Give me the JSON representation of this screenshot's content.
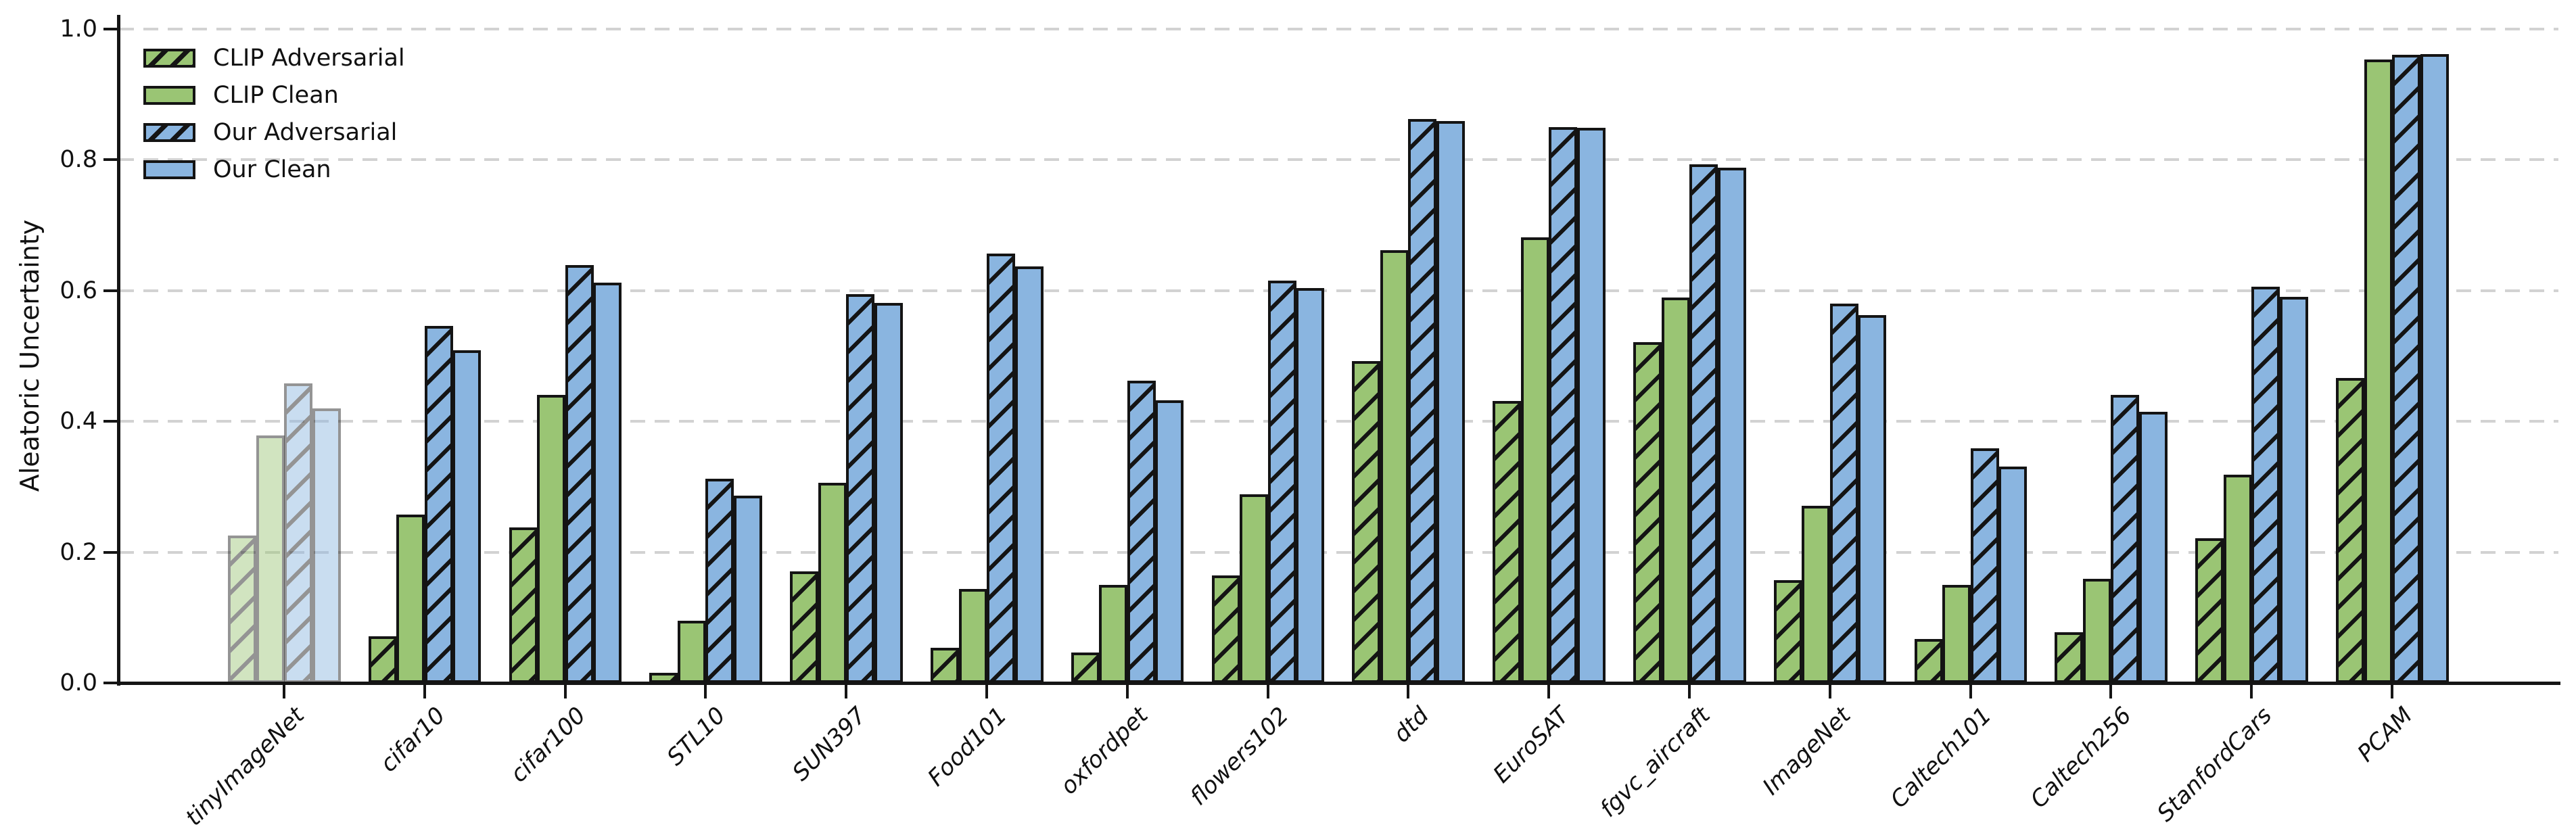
{
  "chart_data": {
    "type": "bar",
    "title": "",
    "xlabel": "",
    "ylabel": "Aleatoric Uncertainty",
    "ylim": [
      0.0,
      1.0
    ],
    "yticks": [
      "0.0",
      "0.2",
      "0.4",
      "0.6",
      "0.8",
      "1.0"
    ],
    "grid": "horizontal-dashed",
    "legend_position": "upper-left",
    "categories": [
      "tinyImageNet",
      "cifar10",
      "cifar100",
      "STL10",
      "SUN397",
      "Food101",
      "oxfordpet",
      "flowers102",
      "dtd",
      "EuroSAT",
      "fgvc_aircraft",
      "ImageNet",
      "Caltech101",
      "Caltech256",
      "StanfordCars",
      "PCAM"
    ],
    "faded_category": "tinyImageNet",
    "faded_alpha": 0.45,
    "series": [
      {
        "name": "CLIP Adversarial",
        "color": "#9ac574",
        "hatch": "/",
        "values": [
          0.225,
          0.071,
          0.238,
          0.016,
          0.171,
          0.054,
          0.047,
          0.164,
          0.492,
          0.431,
          0.521,
          0.157,
          0.067,
          0.078,
          0.221,
          0.466
        ]
      },
      {
        "name": "CLIP Clean",
        "color": "#9ac574",
        "hatch": "",
        "values": [
          0.378,
          0.258,
          0.441,
          0.095,
          0.306,
          0.144,
          0.15,
          0.289,
          0.662,
          0.682,
          0.589,
          0.271,
          0.15,
          0.159,
          0.319,
          0.953
        ]
      },
      {
        "name": "Our Adversarial",
        "color": "#8ab5e0",
        "hatch": "/",
        "values": [
          0.458,
          0.546,
          0.639,
          0.312,
          0.595,
          0.657,
          0.462,
          0.615,
          0.862,
          0.85,
          0.793,
          0.58,
          0.359,
          0.441,
          0.606,
          0.961
        ]
      },
      {
        "name": "Our Clean",
        "color": "#8ab5e0",
        "hatch": "",
        "values": [
          0.42,
          0.509,
          0.612,
          0.286,
          0.581,
          0.637,
          0.432,
          0.604,
          0.859,
          0.849,
          0.788,
          0.563,
          0.331,
          0.415,
          0.591,
          0.962
        ]
      }
    ],
    "colors": {
      "green": "#9ac574",
      "blue": "#8ab5e0",
      "edge": "#141414",
      "gridline": "#d2d2d2",
      "text": "#111111"
    }
  }
}
